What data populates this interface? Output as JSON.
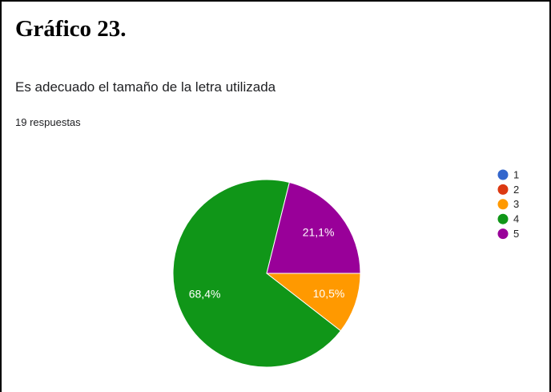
{
  "chart_data": {
    "type": "pie",
    "heading": "Gráfico 23.",
    "title": "Es adecuado el tamaño de la letra utilizada",
    "subtitle": "19 respuestas",
    "categories": [
      "1",
      "2",
      "3",
      "4",
      "5"
    ],
    "values": [
      0,
      0,
      10.5,
      68.4,
      21.1
    ],
    "value_labels": [
      null,
      null,
      "10,5%",
      "68,4%",
      "21,1%"
    ],
    "colors": [
      "#3366cc",
      "#dc3912",
      "#ff9900",
      "#109618",
      "#990099"
    ],
    "legend": "right"
  }
}
